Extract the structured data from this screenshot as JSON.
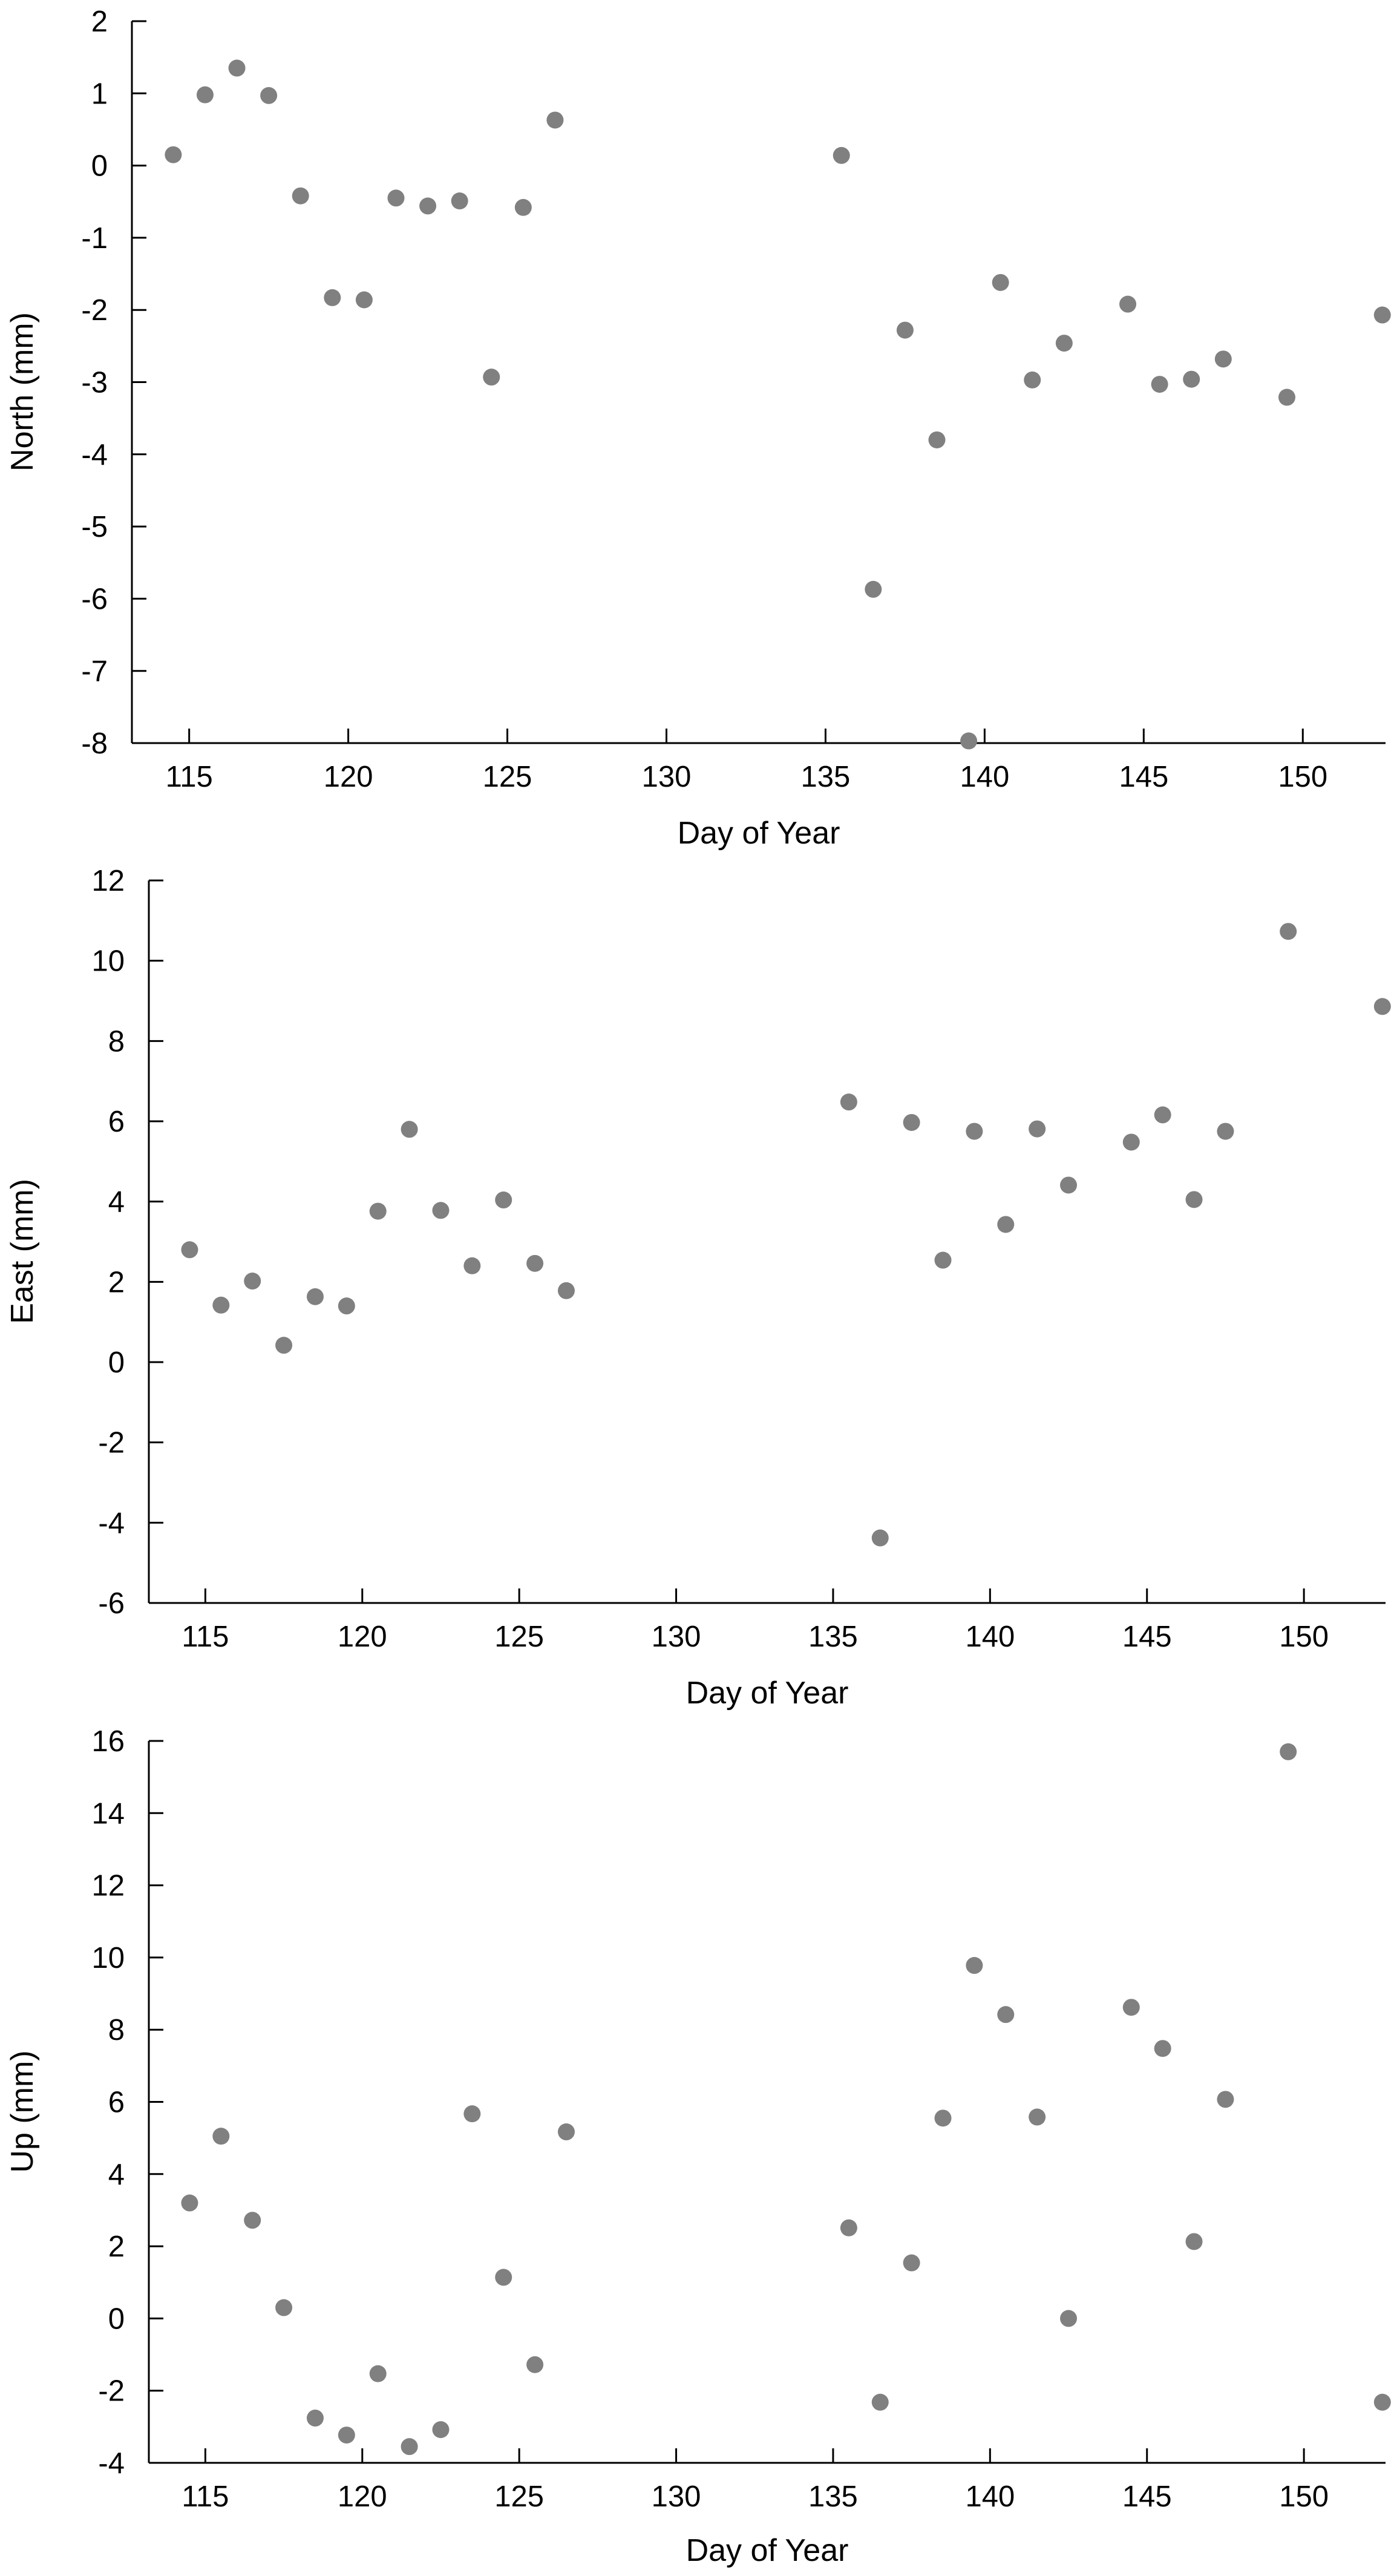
{
  "style": {
    "marker_color": "#808080",
    "axis_color": "#000000",
    "background": "#ffffff"
  },
  "chart_data": [
    {
      "type": "scatter",
      "xlabel": "Day of Year",
      "ylabel": "North (mm)",
      "xlim": [
        113.2,
        152.6
      ],
      "ylim": [
        -8,
        2
      ],
      "xticks": [
        115,
        120,
        125,
        130,
        135,
        140,
        145,
        150
      ],
      "yticks": [
        2,
        1,
        0,
        -1,
        -2,
        -3,
        -4,
        -5,
        -6,
        -7,
        -8
      ],
      "grid": false,
      "series": [
        {
          "x": [
            114.5,
            115.5,
            116.5,
            117.5,
            118.5,
            119.5,
            120.5,
            121.5,
            122.5,
            123.5,
            124.5,
            125.5,
            126.5,
            135.5,
            136.5,
            137.5,
            138.5,
            139.5,
            140.5,
            141.5,
            142.5,
            144.5,
            145.5,
            146.5,
            147.5,
            149.5,
            152.5
          ],
          "y": [
            0.15,
            0.98,
            1.35,
            0.97,
            -0.42,
            -1.83,
            -1.86,
            -0.45,
            -0.56,
            -0.49,
            -2.93,
            -0.58,
            0.63,
            0.14,
            -5.87,
            -2.28,
            -3.8,
            -7.97,
            -1.62,
            -2.97,
            -2.46,
            -1.92,
            -3.03,
            -2.96,
            -2.68,
            -3.21,
            -2.07
          ]
        }
      ]
    },
    {
      "type": "scatter",
      "xlabel": "Day of Year",
      "ylabel": "East (mm)",
      "xlim": [
        113.2,
        152.6
      ],
      "ylim": [
        -6,
        12
      ],
      "xticks": [
        115,
        120,
        125,
        130,
        135,
        140,
        145,
        150
      ],
      "yticks": [
        12,
        10,
        8,
        6,
        4,
        2,
        0,
        -2,
        -4,
        -6
      ],
      "grid": false,
      "series": [
        {
          "x": [
            114.5,
            115.5,
            116.5,
            117.5,
            118.5,
            119.5,
            120.5,
            121.5,
            122.5,
            123.5,
            124.5,
            125.5,
            126.5,
            135.5,
            136.5,
            137.5,
            138.5,
            139.5,
            140.5,
            141.5,
            142.5,
            144.5,
            145.5,
            146.5,
            147.5,
            149.5,
            152.5
          ],
          "y": [
            2.8,
            1.42,
            2.02,
            0.42,
            1.63,
            1.4,
            3.76,
            5.8,
            3.78,
            2.4,
            4.04,
            2.46,
            1.78,
            6.48,
            -4.38,
            5.97,
            2.54,
            5.75,
            3.43,
            5.81,
            4.41,
            5.48,
            6.16,
            4.05,
            5.75,
            10.73,
            8.86
          ]
        }
      ]
    },
    {
      "type": "scatter",
      "xlabel": "Day of Year",
      "ylabel": "Up (mm)",
      "xlim": [
        113.2,
        152.6
      ],
      "ylim": [
        -4,
        16
      ],
      "xticks": [
        115,
        120,
        125,
        130,
        135,
        140,
        145,
        150
      ],
      "yticks": [
        16,
        14,
        12,
        10,
        8,
        6,
        4,
        2,
        0,
        -2,
        -4
      ],
      "grid": false,
      "series": [
        {
          "x": [
            114.5,
            115.5,
            116.5,
            117.5,
            118.5,
            119.5,
            120.5,
            121.5,
            122.5,
            123.5,
            124.5,
            125.5,
            126.5,
            135.5,
            136.5,
            137.5,
            138.5,
            139.5,
            140.5,
            141.5,
            142.5,
            144.5,
            145.5,
            146.5,
            147.5,
            149.5,
            152.5
          ],
          "y": [
            3.2,
            5.05,
            2.72,
            0.3,
            -2.76,
            -3.23,
            -1.53,
            -3.55,
            -3.08,
            5.67,
            1.14,
            -1.28,
            5.17,
            2.51,
            -2.32,
            1.54,
            5.55,
            9.78,
            8.42,
            5.58,
            0.0,
            8.62,
            7.48,
            2.13,
            6.07,
            15.7,
            -2.32
          ]
        }
      ]
    }
  ]
}
